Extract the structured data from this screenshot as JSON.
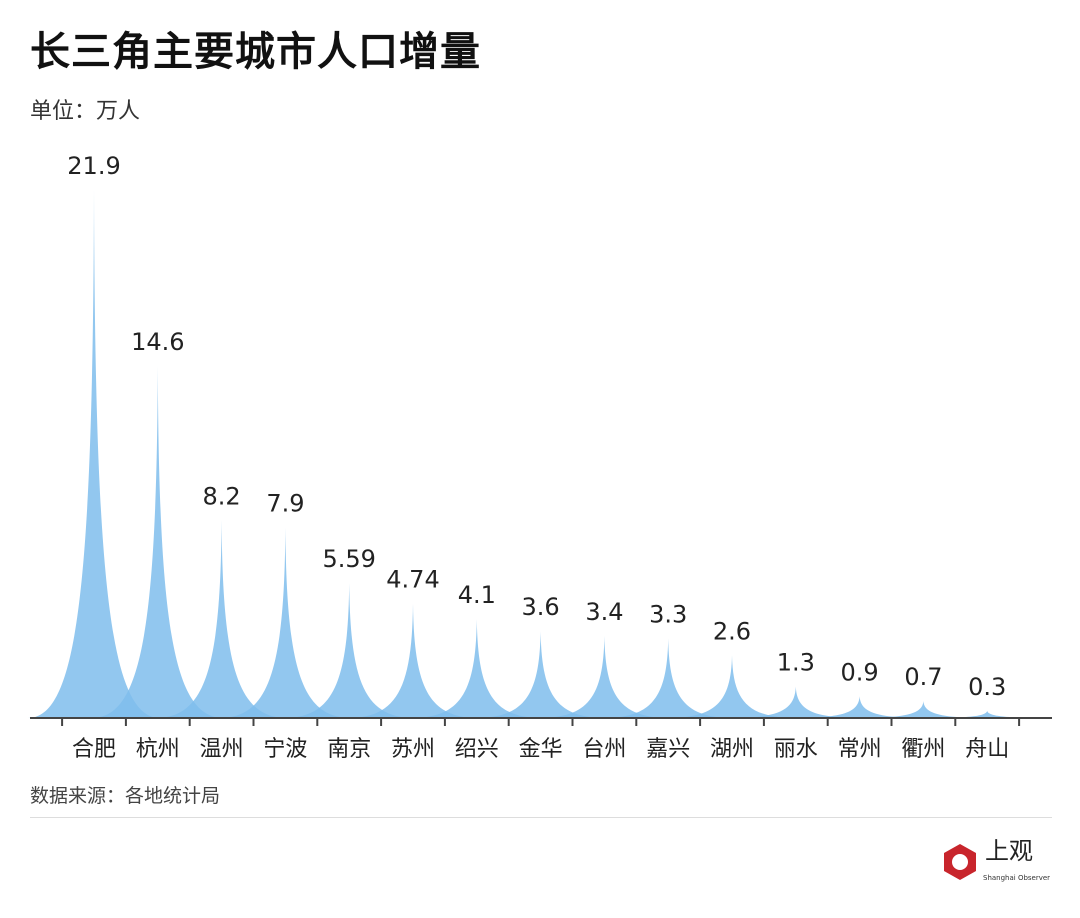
{
  "chart_data": {
    "type": "area",
    "title": "长三角主要城市人口增量",
    "unit_label": "单位：万人",
    "source": "数据来源：各地统计局",
    "categories": [
      "合肥",
      "杭州",
      "温州",
      "宁波",
      "南京",
      "苏州",
      "绍兴",
      "金华",
      "台州",
      "嘉兴",
      "湖州",
      "丽水",
      "常州",
      "衢州",
      "舟山"
    ],
    "values": [
      21.9,
      14.6,
      8.2,
      7.9,
      5.59,
      4.74,
      4.1,
      3.6,
      3.4,
      3.3,
      2.6,
      1.3,
      0.9,
      0.7,
      0.3
    ],
    "value_labels": [
      "21.9",
      "14.6",
      "8.2",
      "7.9",
      "5.59",
      "4.74",
      "4.1",
      "3.6",
      "3.4",
      "3.3",
      "2.6",
      "1.3",
      "0.9",
      "0.7",
      "0.3"
    ],
    "ylim": [
      0,
      21.9
    ],
    "grid": false,
    "color": "#7fbdec"
  },
  "logo": {
    "cn": "上观",
    "en": "Shanghai Observer",
    "color": "#c8252c"
  }
}
